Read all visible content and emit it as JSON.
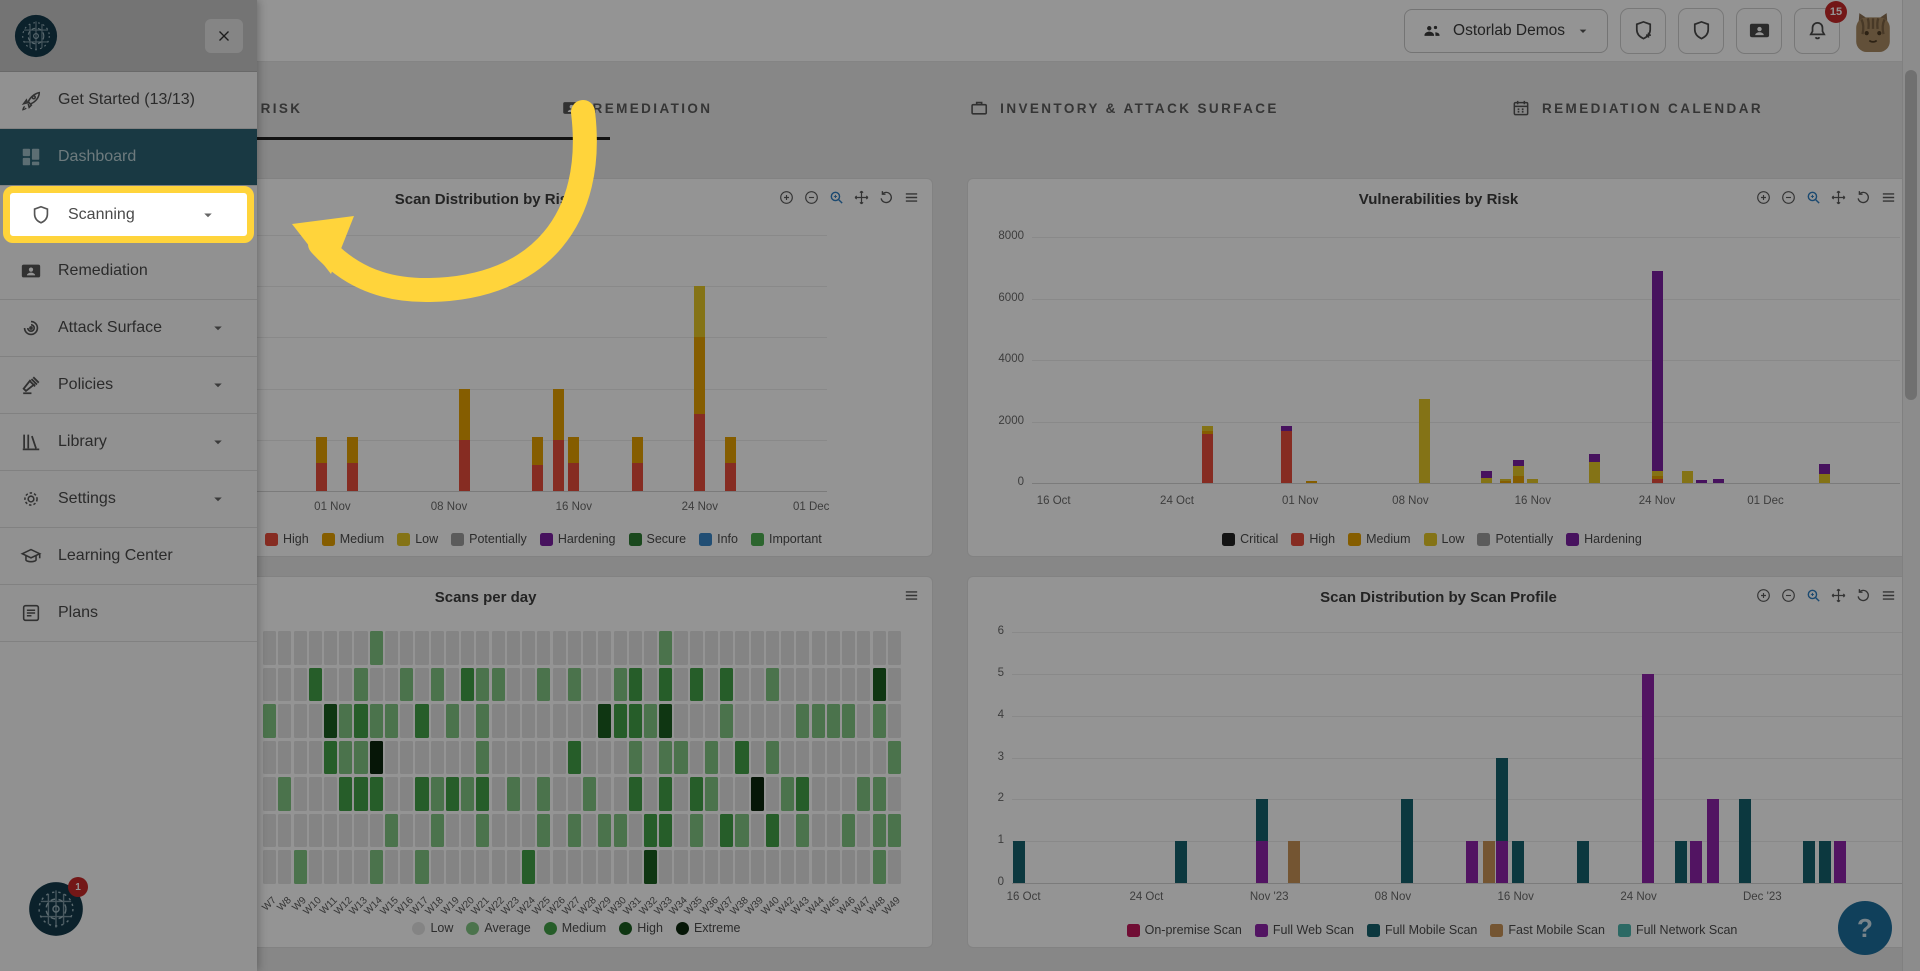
{
  "topbar": {
    "org_button": {
      "label": "Ostorlab Demos",
      "icon": "people",
      "chevron": "chevron-down"
    },
    "actions": [
      {
        "id": "new-scan",
        "icon": "shield-plus"
      },
      {
        "id": "scans",
        "icon": "shield"
      },
      {
        "id": "remediation",
        "icon": "card"
      },
      {
        "id": "notifications",
        "icon": "bell",
        "badge": "15"
      }
    ],
    "notification_count": "15"
  },
  "sidebar": {
    "items": [
      {
        "id": "get-started",
        "label": "Get Started (13/13)",
        "icon": "rocket",
        "chevron": false,
        "active": false,
        "highlighted": false
      },
      {
        "id": "dashboard",
        "label": "Dashboard",
        "icon": "dashboard",
        "chevron": false,
        "active": true,
        "highlighted": false
      },
      {
        "id": "scanning",
        "label": "Scanning",
        "icon": "shield",
        "chevron": true,
        "active": false,
        "highlighted": true
      },
      {
        "id": "remediation",
        "label": "Remediation",
        "icon": "card",
        "chevron": false,
        "active": false,
        "highlighted": false
      },
      {
        "id": "attack-surface",
        "label": "Attack Surface",
        "icon": "target",
        "chevron": true,
        "active": false,
        "highlighted": false
      },
      {
        "id": "policies",
        "label": "Policies",
        "icon": "gavel",
        "chevron": true,
        "active": false,
        "highlighted": false
      },
      {
        "id": "library",
        "label": "Library",
        "icon": "library",
        "chevron": true,
        "active": false,
        "highlighted": false
      },
      {
        "id": "settings",
        "label": "Settings",
        "icon": "gear",
        "chevron": true,
        "active": false,
        "highlighted": false
      },
      {
        "id": "learning-center",
        "label": "Learning Center",
        "icon": "cap",
        "chevron": false,
        "active": false,
        "highlighted": false
      },
      {
        "id": "plans",
        "label": "Plans",
        "icon": "doc",
        "chevron": false,
        "active": false,
        "highlighted": false
      }
    ],
    "bottom_badge": "1"
  },
  "tabs": [
    {
      "id": "risk",
      "label": "RISK",
      "icon": "warning",
      "active": true
    },
    {
      "id": "remediation",
      "label": "REMEDIATION",
      "icon": "card",
      "active": false
    },
    {
      "id": "inventory",
      "label": "INVENTORY & ATTACK SURFACE",
      "icon": "briefcase",
      "active": false
    },
    {
      "id": "remediation-calendar",
      "label": "REMEDIATION CALENDAR",
      "icon": "calendar",
      "active": false
    }
  ],
  "tour": {
    "highlighted_item": "Scanning",
    "highlight_color": "#FFD43B"
  },
  "help": {
    "label": "?"
  },
  "chart_data": [
    {
      "id": "scan-dist-risk",
      "type": "bar",
      "title": "Scan Distribution by Risk",
      "stacked": true,
      "ylim": 5,
      "grid": true,
      "legend_position": "bottom-left",
      "toolbox": [
        "zoom-in",
        "zoom-out",
        "zoom-box",
        "pan",
        "restore",
        "menu"
      ],
      "legend": [
        {
          "key": "high",
          "label": "High",
          "color": "#e74c3c"
        },
        {
          "key": "medium",
          "label": "Medium",
          "color": "#e6a100"
        },
        {
          "key": "low",
          "label": "Low",
          "color": "#e3c727"
        },
        {
          "key": "potentially",
          "label": "Potentially",
          "color": "#9e9e9e"
        },
        {
          "key": "hardening",
          "label": "Hardening",
          "color": "#7b1fa2"
        },
        {
          "key": "secure",
          "label": "Secure",
          "color": "#2e7d32"
        },
        {
          "key": "info",
          "label": "Info",
          "color": "#3a87c8"
        },
        {
          "key": "important",
          "label": "Important",
          "color": "#4caf50"
        }
      ],
      "bars": [
        {
          "x": 0.138,
          "v": {
            "high": 0.55,
            "medium": 0.5
          }
        },
        {
          "x": 0.19,
          "v": {
            "high": 0.55,
            "medium": 0.5
          }
        },
        {
          "x": 0.381,
          "v": {
            "high": 1.0,
            "medium": 1.0
          }
        },
        {
          "x": 0.506,
          "v": {
            "high": 0.5,
            "medium": 0.55
          }
        },
        {
          "x": 0.541,
          "v": {
            "high": 1.0,
            "medium": 1.0
          }
        },
        {
          "x": 0.568,
          "v": {
            "high": 0.55,
            "medium": 0.5
          }
        },
        {
          "x": 0.676,
          "v": {
            "high": 0.55,
            "medium": 0.5
          }
        },
        {
          "x": 0.783,
          "v": {
            "high": 1.5,
            "medium": 1.5,
            "low": 1.0
          }
        },
        {
          "x": 0.835,
          "v": {
            "high": 0.55,
            "medium": 0.5
          }
        }
      ],
      "xlabels": [
        {
          "t": "01 Nov",
          "x": 0.156
        },
        {
          "t": "08 Nov",
          "x": 0.355
        },
        {
          "t": "16 Nov",
          "x": 0.568
        },
        {
          "t": "24 Nov",
          "x": 0.783
        },
        {
          "t": "01 Dec",
          "x": 0.973
        }
      ]
    },
    {
      "id": "vuln-risk",
      "type": "bar",
      "title": "Vulnerabilities by Risk",
      "stacked": true,
      "ylim": 8000,
      "yticks": [
        0,
        2000,
        4000,
        6000,
        8000
      ],
      "grid": true,
      "legend_position": "bottom-center",
      "toolbox": [
        "zoom-in",
        "zoom-out",
        "zoom-box",
        "pan",
        "restore",
        "menu"
      ],
      "legend": [
        {
          "key": "critical",
          "label": "Critical",
          "color": "#212121"
        },
        {
          "key": "high",
          "label": "High",
          "color": "#e74c3c"
        },
        {
          "key": "medium",
          "label": "Medium",
          "color": "#e6a100"
        },
        {
          "key": "low",
          "label": "Low",
          "color": "#e3c727"
        },
        {
          "key": "potentially",
          "label": "Potentially",
          "color": "#9e9e9e"
        },
        {
          "key": "hardening",
          "label": "Hardening",
          "color": "#7b1fa2"
        }
      ],
      "bars": [
        {
          "x": 0.202,
          "v": {
            "high": 1600,
            "medium": 100,
            "low": 150
          }
        },
        {
          "x": 0.293,
          "v": {
            "high": 1700,
            "hardening": 170
          }
        },
        {
          "x": 0.322,
          "v": {
            "medium": 60
          }
        },
        {
          "x": 0.452,
          "v": {
            "low": 2720
          }
        },
        {
          "x": 0.523,
          "v": {
            "low": 160,
            "hardening": 220
          }
        },
        {
          "x": 0.545,
          "v": {
            "medium": 70,
            "low": 70
          }
        },
        {
          "x": 0.561,
          "v": {
            "medium": 230,
            "low": 330,
            "hardening": 200
          }
        },
        {
          "x": 0.577,
          "v": {
            "low": 140
          }
        },
        {
          "x": 0.648,
          "v": {
            "low": 680,
            "hardening": 270
          }
        },
        {
          "x": 0.72,
          "v": {
            "high": 120,
            "medium": 120,
            "low": 160,
            "hardening": 6500
          }
        },
        {
          "x": 0.755,
          "v": {
            "low": 400
          }
        },
        {
          "x": 0.771,
          "v": {
            "hardening": 90
          }
        },
        {
          "x": 0.791,
          "v": {
            "hardening": 120
          }
        },
        {
          "x": 0.913,
          "v": {
            "low": 300,
            "hardening": 320
          }
        }
      ],
      "xlabels": [
        {
          "t": "16 Oct",
          "x": 0.025
        },
        {
          "t": "24 Oct",
          "x": 0.167
        },
        {
          "t": "01 Nov",
          "x": 0.309
        },
        {
          "t": "08 Nov",
          "x": 0.436
        },
        {
          "t": "16 Nov",
          "x": 0.577
        },
        {
          "t": "24 Nov",
          "x": 0.72
        },
        {
          "t": "01 Dec",
          "x": 0.845
        }
      ]
    },
    {
      "id": "scans-per-day",
      "type": "heatmap",
      "title": "Scans per day",
      "toolbox": [
        "menu"
      ],
      "weeks": [
        "W7",
        "W8",
        "W9",
        "W10",
        "W11",
        "W12",
        "W13",
        "W14",
        "W15",
        "W16",
        "W17",
        "W18",
        "W19",
        "W20",
        "W21",
        "W22",
        "W23",
        "W24",
        "W25",
        "W26",
        "W27",
        "W28",
        "W29",
        "W30",
        "W31",
        "W32",
        "W33",
        "W34",
        "W35",
        "W36",
        "W37",
        "W38",
        "W39",
        "W40",
        "W42",
        "W43",
        "W44",
        "W45",
        "W46",
        "W47",
        "W48",
        "W49"
      ],
      "levels": [
        {
          "code": "0",
          "label": "Low",
          "color": "#e3e3e3"
        },
        {
          "code": "1",
          "label": "Average",
          "color": "#81c784"
        },
        {
          "code": "2",
          "label": "Medium",
          "color": "#43a047"
        },
        {
          "code": "3",
          "label": "High",
          "color": "#1b5e20"
        },
        {
          "code": "4",
          "label": "Extreme",
          "color": "#0b260d"
        }
      ],
      "grid": [
        "000000010000000000000000001000000000000000",
        "000200100101021100101001202020200100000030",
        "100031211020101000000032213000100001111010",
        "000021140000001000002000101101020100000001",
        "010002220021212010100100202021004012000110",
        "000000001001001000101011022010210201001011",
        "001000010010000002000000030000000000000010"
      ]
    },
    {
      "id": "scan-dist-profile",
      "type": "bar",
      "title": "Scan Distribution by Scan Profile",
      "stacked": true,
      "ylim": 6,
      "yticks": [
        0,
        1,
        2,
        3,
        4,
        5,
        6
      ],
      "grid": true,
      "legend_position": "bottom-center",
      "toolbox": [
        "zoom-in",
        "zoom-out",
        "zoom-box",
        "pan",
        "restore",
        "menu"
      ],
      "legend": [
        {
          "key": "onprem",
          "label": "On-premise Scan",
          "color": "#c2185b"
        },
        {
          "key": "fullweb",
          "label": "Full Web Scan",
          "color": "#8e24aa"
        },
        {
          "key": "fullmobile",
          "label": "Full Mobile Scan",
          "color": "#15616d"
        },
        {
          "key": "fastmobile",
          "label": "Fast Mobile Scan",
          "color": "#c99356"
        },
        {
          "key": "fullnetwork",
          "label": "Full Network Scan",
          "color": "#4db6ac"
        }
      ],
      "bars": [
        {
          "x": 0.008,
          "v": {
            "fullmobile": 1
          }
        },
        {
          "x": 0.19,
          "v": {
            "fullmobile": 1
          }
        },
        {
          "x": 0.281,
          "v": {
            "fullweb": 1,
            "fullmobile": 1
          }
        },
        {
          "x": 0.317,
          "v": {
            "fastmobile": 1
          }
        },
        {
          "x": 0.444,
          "v": {
            "fullmobile": 2
          }
        },
        {
          "x": 0.517,
          "v": {
            "fullweb": 1
          }
        },
        {
          "x": 0.536,
          "v": {
            "fastmobile": 1
          }
        },
        {
          "x": 0.551,
          "v": {
            "fullweb": 1,
            "fullmobile": 2
          }
        },
        {
          "x": 0.569,
          "v": {
            "fullmobile": 1
          }
        },
        {
          "x": 0.642,
          "v": {
            "fullmobile": 1
          }
        },
        {
          "x": 0.715,
          "v": {
            "fullweb": 5
          }
        },
        {
          "x": 0.752,
          "v": {
            "fullmobile": 1
          }
        },
        {
          "x": 0.769,
          "v": {
            "fullweb": 1
          }
        },
        {
          "x": 0.788,
          "v": {
            "fullweb": 2
          }
        },
        {
          "x": 0.824,
          "v": {
            "fullmobile": 2
          }
        },
        {
          "x": 0.895,
          "v": {
            "fullmobile": 1
          }
        },
        {
          "x": 0.913,
          "v": {
            "fullmobile": 1
          }
        },
        {
          "x": 0.93,
          "v": {
            "fullweb": 1
          }
        }
      ],
      "xlabels": [
        {
          "t": "16 Oct",
          "x": 0.013
        },
        {
          "t": "24 Oct",
          "x": 0.151
        },
        {
          "t": "Nov '23",
          "x": 0.289
        },
        {
          "t": "08 Nov",
          "x": 0.428
        },
        {
          "t": "16 Nov",
          "x": 0.566
        },
        {
          "t": "24 Nov",
          "x": 0.704
        },
        {
          "t": "Dec '23",
          "x": 0.843
        }
      ]
    }
  ]
}
